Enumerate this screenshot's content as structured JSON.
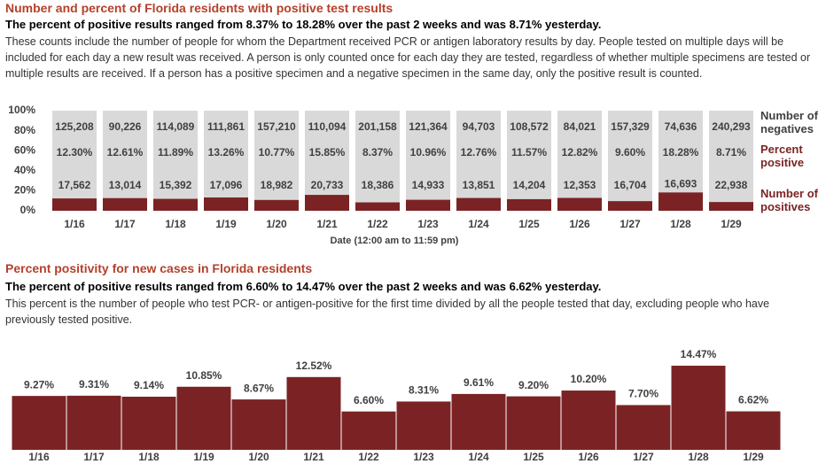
{
  "chart_data": [
    {
      "type": "bar",
      "title": "Number and percent of Florida residents with positive test results",
      "subtitle": "The percent of positive results ranged from 8.37% to 18.28% over the past 2 weeks and was 8.71% yesterday.",
      "description": "These counts include the number of people for whom the Department received PCR or antigen laboratory results by day. People tested on multiple days will be included for each day a new result was received. A person is only counted once for each day they are tested, regardless of whether multiple specimens are tested or multiple results are received. If a person has a positive specimen and a negative specimen in the same day, only the positive result is counted.",
      "x_label": "Date (12:00 am to 11:59 pm)",
      "categories": [
        "1/16",
        "1/17",
        "1/18",
        "1/19",
        "1/20",
        "1/21",
        "1/22",
        "1/23",
        "1/24",
        "1/25",
        "1/26",
        "1/27",
        "1/28",
        "1/29"
      ],
      "ylim": [
        0,
        100
      ],
      "yticks": [
        {
          "value": 0,
          "label": "0%"
        },
        {
          "value": 20,
          "label": "20%"
        },
        {
          "value": 40,
          "label": "40%"
        },
        {
          "value": 60,
          "label": "60%"
        },
        {
          "value": 80,
          "label": "80%"
        },
        {
          "value": 100,
          "label": "100%"
        }
      ],
      "background_color": "#d9d9d9",
      "series": [
        {
          "name": "Number of negatives",
          "color": "#404040",
          "values": [
            125208,
            90226,
            114089,
            111861,
            157210,
            110094,
            201158,
            121364,
            94703,
            108572,
            84021,
            157329,
            74636,
            240293
          ]
        },
        {
          "name": "Percent positive",
          "color": "#7b2324",
          "values": [
            12.3,
            12.61,
            11.89,
            13.26,
            10.77,
            15.85,
            8.37,
            10.96,
            12.76,
            11.57,
            12.82,
            9.6,
            18.28,
            8.71
          ],
          "value_labels": [
            "12.30%",
            "12.61%",
            "11.89%",
            "13.26%",
            "10.77%",
            "15.85%",
            "8.37%",
            "10.96%",
            "12.76%",
            "11.57%",
            "12.82%",
            "9.60%",
            "18.28%",
            "8.71%"
          ]
        },
        {
          "name": "Number of positives",
          "color": "#7b2324",
          "values": [
            17562,
            13014,
            15392,
            17096,
            18982,
            20733,
            18386,
            14933,
            13851,
            14204,
            12353,
            16704,
            16693,
            22938
          ]
        }
      ]
    },
    {
      "type": "bar",
      "title": "Percent positivity for new cases in Florida residents",
      "subtitle": "The percent of positive results ranged from 6.60% to 14.47% over the past 2 weeks and was 6.62% yesterday.",
      "description": "This percent is the number of people who test PCR- or antigen-positive for the first time divided by all the people tested that day, excluding people who have previously tested positive.",
      "categories": [
        "1/16",
        "1/17",
        "1/18",
        "1/19",
        "1/20",
        "1/21",
        "1/22",
        "1/23",
        "1/24",
        "1/25",
        "1/26",
        "1/27",
        "1/28",
        "1/29"
      ],
      "color": "#7b2324",
      "values": [
        9.27,
        9.31,
        9.14,
        10.85,
        8.67,
        12.52,
        6.6,
        8.31,
        9.61,
        9.2,
        10.2,
        7.7,
        14.47,
        6.62
      ],
      "value_labels": [
        "9.27%",
        "9.31%",
        "9.14%",
        "10.85%",
        "8.67%",
        "12.52%",
        "6.60%",
        "8.31%",
        "9.61%",
        "9.20%",
        "10.20%",
        "7.70%",
        "14.47%",
        "6.62%"
      ]
    }
  ]
}
